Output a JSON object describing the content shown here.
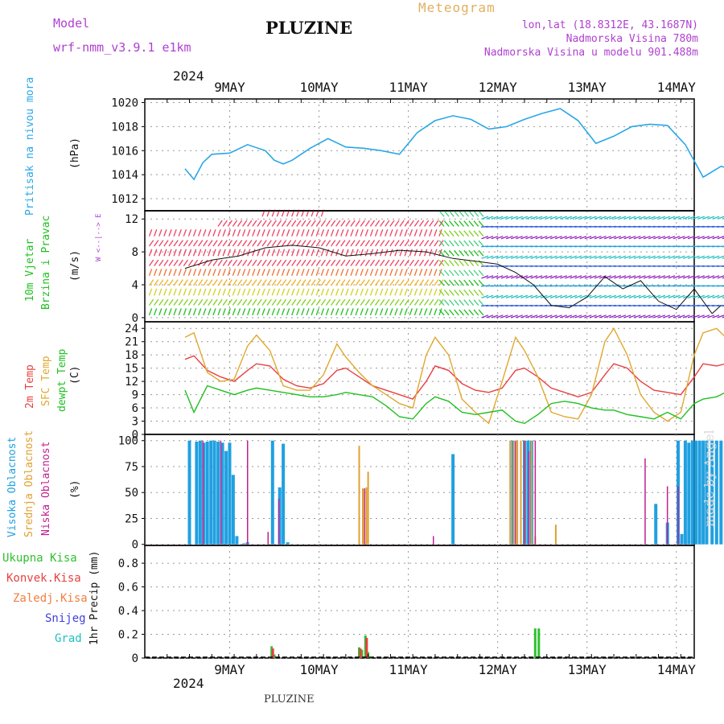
{
  "header": {
    "model_label": "Model",
    "model_name": "wrf-nmm_v3.9.1 e1km",
    "title": "PLUZINE",
    "meteogram": "Meteogram",
    "lonlat": "lon,lat (18.8312E, 43.1687N)",
    "altitude": "Nadmorska Visina 780m",
    "model_altitude": "Nadmorska Visina u modelu 901.488m"
  },
  "footer": {
    "station": "PLUZINE",
    "watermark": "made by Angel"
  },
  "time_axis": {
    "year": "2024",
    "labels": [
      "9MAY",
      "10MAY",
      "11MAY",
      "12MAY",
      "13MAY",
      "14MAY"
    ]
  },
  "colors": {
    "pressure": "#2aa7e6",
    "temp2m": "#e84040",
    "sfc": "#e0a830",
    "dew": "#20c020",
    "high_cloud": "#20a0e0",
    "mid_cloud": "#e0a030",
    "low_cloud": "#c02090",
    "total_rain": "#30c030",
    "conv_rain": "#e84040",
    "frz_rain": "#f08040",
    "snow": "#4040e0",
    "hail": "#20c0c0"
  },
  "panels": {
    "pressure": {
      "label_main": "Pritisak na nivou mora",
      "unit": "(hPa)"
    },
    "wind": {
      "label_a": "10m Vjetar",
      "label_b": "Brzina i Pravac",
      "unit": "(m/s)",
      "compass": "W <--|--> E"
    },
    "temp": {
      "label_a": "2m Temp",
      "label_b": "SFC Temp",
      "label_c": "dewpt Temp",
      "unit": "(C)"
    },
    "cloud": {
      "label_a": "Visoka Oblacnost",
      "label_b": "Srednja Oblacnost",
      "label_c": "Niska Oblacnost",
      "unit": "(%)"
    },
    "precip": {
      "label": "1hr Precip (mm)",
      "legend": [
        "Ukupna Kisa",
        "Konvek.Kisa",
        "Zaledj.Kisa",
        "Snijeg",
        "Grad"
      ]
    }
  },
  "chart_data": [
    {
      "type": "line",
      "title": "",
      "ylabel": "Pritisak na nivou mora (hPa)",
      "ylim": [
        1011,
        1020.3
      ],
      "yticks": [
        1012,
        1014,
        1016,
        1018,
        1020
      ],
      "x_days": [
        0,
        0.1,
        0.2,
        0.3,
        0.5,
        0.7,
        0.9,
        1.0,
        1.1,
        1.2,
        1.4,
        1.6,
        1.8,
        2.0,
        2.2,
        2.4,
        2.6,
        2.8,
        3.0,
        3.2,
        3.4,
        3.6,
        3.8,
        4.0,
        4.2,
        4.4,
        4.6,
        4.8,
        5.0,
        5.2,
        5.4,
        5.6,
        5.8,
        6.0,
        6.1
      ],
      "x_note": "days since 2024-05-08 12:00",
      "series": [
        {
          "name": "Pritisak na nivou mora",
          "values": [
            1014.5,
            1013.6,
            1015.0,
            1015.7,
            1015.8,
            1016.5,
            1016.0,
            1015.2,
            1014.9,
            1015.2,
            1016.2,
            1017.0,
            1016.3,
            1016.2,
            1016.0,
            1015.7,
            1017.5,
            1018.5,
            1018.9,
            1018.6,
            1017.8,
            1018.0,
            1018.6,
            1019.1,
            1019.5,
            1018.5,
            1016.6,
            1017.2,
            1018.0,
            1018.2,
            1018.1,
            1016.5,
            1013.8,
            1014.7,
            1014.5
          ]
        }
      ]
    },
    {
      "type": "line",
      "title": "",
      "ylabel": "10m Vjetar Brzina i Pravac (m/s)",
      "ylim": [
        -0.5,
        13
      ],
      "yticks": [
        0,
        4,
        8,
        12
      ],
      "x_days": [
        0,
        0.3,
        0.6,
        0.9,
        1.2,
        1.5,
        1.8,
        2.1,
        2.4,
        2.7,
        3.0,
        3.3,
        3.5,
        3.7,
        3.9,
        4.1,
        4.3,
        4.5,
        4.7,
        4.9,
        5.1,
        5.3,
        5.5,
        5.7,
        5.9,
        6.0
      ],
      "series": [
        {
          "name": "Brzina",
          "values": [
            6,
            7,
            7.5,
            8.5,
            8.8,
            8.5,
            7.5,
            7.8,
            8.2,
            8.0,
            7.2,
            6.8,
            6.5,
            5.5,
            4.0,
            1.5,
            1.2,
            2.5,
            5.0,
            3.5,
            4.5,
            2.0,
            1.0,
            3.5,
            0.5,
            1.5
          ]
        }
      ]
    },
    {
      "type": "line",
      "title": "",
      "ylabel": "Temp (C)",
      "ylim": [
        0,
        25.5
      ],
      "yticks": [
        0,
        3,
        6,
        9,
        12,
        15,
        18,
        21,
        24
      ],
      "x_days": [
        0,
        0.1,
        0.25,
        0.4,
        0.55,
        0.7,
        0.8,
        0.95,
        1.1,
        1.25,
        1.4,
        1.55,
        1.7,
        1.8,
        1.95,
        2.1,
        2.25,
        2.4,
        2.55,
        2.7,
        2.8,
        2.95,
        3.1,
        3.25,
        3.4,
        3.55,
        3.7,
        3.8,
        3.95,
        4.1,
        4.25,
        4.4,
        4.55,
        4.7,
        4.8,
        4.95,
        5.1,
        5.25,
        5.4,
        5.55,
        5.7,
        5.8,
        5.95,
        6.05
      ],
      "series": [
        {
          "name": "2m Temp",
          "values": [
            17,
            17.8,
            14.5,
            13.0,
            12.0,
            14.5,
            16.0,
            15.5,
            12.5,
            11.0,
            10.5,
            11.5,
            14.5,
            15.0,
            13.0,
            11.0,
            10.0,
            9.0,
            8.0,
            12.0,
            15.5,
            14.5,
            11.5,
            10.0,
            9.5,
            10.5,
            14.5,
            15.0,
            13.0,
            10.5,
            9.5,
            8.5,
            9.5,
            13.5,
            16.0,
            15.0,
            12.0,
            10.0,
            9.5,
            9.0,
            13.0,
            16.0,
            15.5,
            16.0
          ]
        },
        {
          "name": "SFC Temp",
          "values": [
            22,
            23,
            14.0,
            12.0,
            12.5,
            20.0,
            22.5,
            19.0,
            11.0,
            10.0,
            10.0,
            13.5,
            20.5,
            17.5,
            14.0,
            11.0,
            9.0,
            7.0,
            6.0,
            18.0,
            22.0,
            18.0,
            8.0,
            5.0,
            2.5,
            12.0,
            22.0,
            19.0,
            13.0,
            5.0,
            4.0,
            3.5,
            9.0,
            21.0,
            24.0,
            18.0,
            9.0,
            5.0,
            3.0,
            5.0,
            18.0,
            23.0,
            24.0,
            22.0
          ]
        },
        {
          "name": "dewpt Temp",
          "values": [
            10,
            5.0,
            11.0,
            10.0,
            9.0,
            10.0,
            10.5,
            10.0,
            9.5,
            9.0,
            8.5,
            8.5,
            9.0,
            9.5,
            9.0,
            8.5,
            6.5,
            4.0,
            3.5,
            7.0,
            8.5,
            7.5,
            5.0,
            4.5,
            5.0,
            5.5,
            3.0,
            2.5,
            4.5,
            7.0,
            7.5,
            7.0,
            6.0,
            5.5,
            5.5,
            4.5,
            4.0,
            3.5,
            5.0,
            3.5,
            7.0,
            8.0,
            8.5,
            9.5
          ]
        }
      ]
    },
    {
      "type": "bar",
      "title": "",
      "ylabel": "Oblacnost (%)",
      "ylim": [
        -1,
        106
      ],
      "yticks": [
        0,
        25,
        50,
        75,
        100
      ],
      "series": [
        {
          "name": "Visoka Oblacnost",
          "x_days": [
            0.05,
            0.13,
            0.17,
            0.21,
            0.25,
            0.29,
            0.33,
            0.37,
            0.42,
            0.46,
            0.5,
            0.54,
            0.58,
            0.66,
            0.7,
            0.98,
            1.06,
            1.1,
            1.15,
            3.0,
            3.67,
            3.8,
            3.84,
            3.88,
            5.27,
            5.4,
            5.52,
            5.56,
            5.6,
            5.64,
            5.68,
            5.72,
            5.76,
            5.8,
            5.84,
            5.9,
            5.95,
            6.0,
            6.05
          ],
          "values": [
            100,
            99,
            100,
            98,
            99,
            100,
            100,
            99,
            98,
            90,
            98,
            67,
            8,
            1,
            2,
            100,
            55,
            97,
            2,
            87,
            100,
            100,
            100,
            100,
            39,
            21,
            100,
            10,
            100,
            98,
            100,
            100,
            100,
            100,
            100,
            100,
            100,
            100,
            100
          ]
        },
        {
          "name": "Srednja Oblacnost",
          "x_days": [
            1.95,
            1.99,
            2.03,
            2.05,
            3.64,
            3.68,
            3.72,
            3.76,
            3.8,
            3.88,
            3.92,
            4.15
          ],
          "values": [
            95,
            54,
            55,
            70,
            100,
            100,
            100,
            100,
            100,
            100,
            8,
            19
          ]
        },
        {
          "name": "Niska Oblacnost",
          "x_days": [
            0.2,
            0.4,
            0.7,
            0.93,
            1.05,
            2.01,
            2.78,
            3.7,
            3.8,
            3.85,
            3.92,
            5.15,
            5.4,
            5.52
          ],
          "values": [
            100,
            100,
            100,
            12,
            44,
            54,
            8,
            100,
            100,
            90,
            100,
            83,
            56,
            56
          ]
        }
      ]
    },
    {
      "type": "bar",
      "title": "",
      "ylabel": "1hr Precip (mm)",
      "ylim": [
        0,
        0.95
      ],
      "yticks": [
        0,
        0.2,
        0.4,
        0.6,
        0.8
      ],
      "series": [
        {
          "name": "Ukupna Kisa",
          "x_days": [
            0.97,
            1.0,
            1.95,
            1.98,
            2.02,
            2.05,
            2.08,
            3.92,
            3.96,
            6.05
          ],
          "values": [
            0.1,
            0.03,
            0.09,
            0.07,
            0.19,
            0.05,
            0.01,
            0.25,
            0.25,
            0.04
          ]
        },
        {
          "name": "Konvek.Kisa",
          "x_days": [
            0.97,
            1.95,
            2.02,
            3.05
          ],
          "values": [
            0.08,
            0.08,
            0.17,
            0.01
          ]
        }
      ]
    }
  ]
}
